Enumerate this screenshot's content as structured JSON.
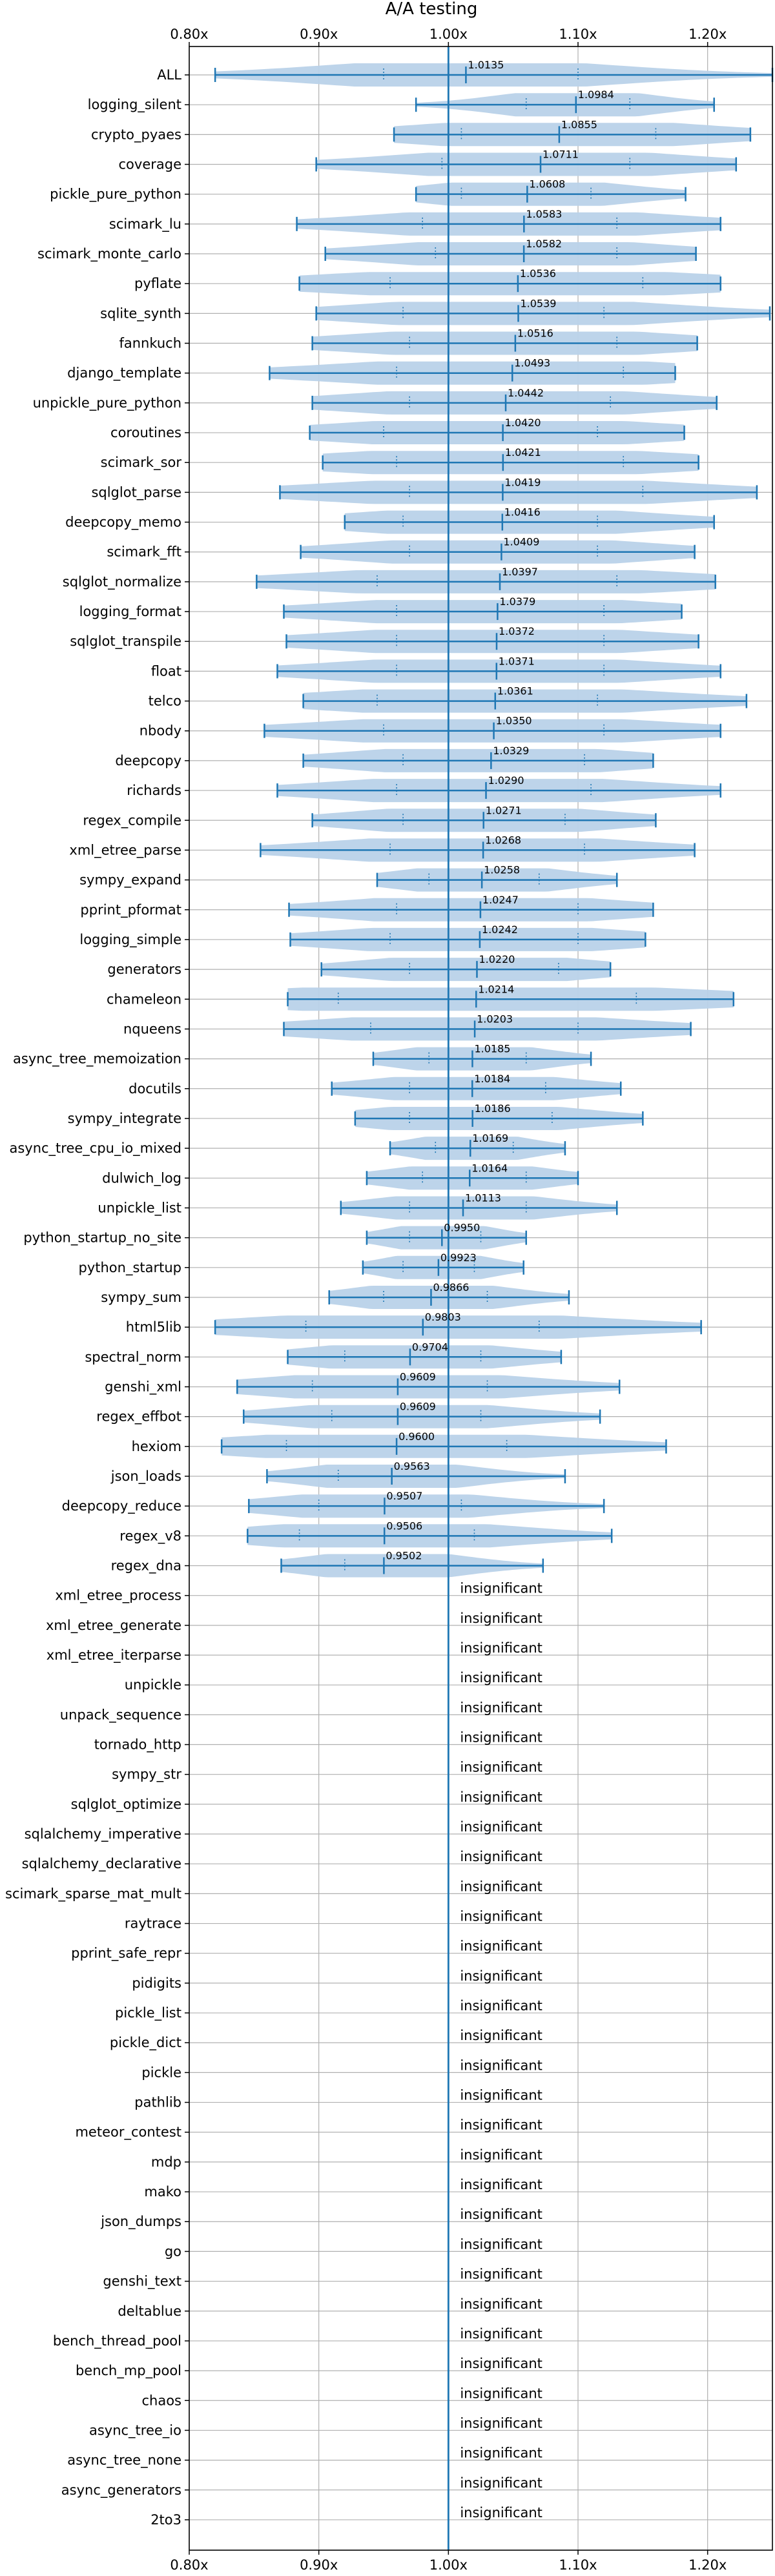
{
  "chart_data": {
    "type": "violin",
    "title": "A/A testing",
    "xlim": [
      0.8,
      1.25
    ],
    "x_ticks": [
      {
        "value": 0.8,
        "label": "0.80x"
      },
      {
        "value": 0.9,
        "label": "0.90x"
      },
      {
        "value": 1.0,
        "label": "1.00x"
      },
      {
        "value": 1.1,
        "label": "1.10x"
      },
      {
        "value": 1.2,
        "label": "1.20x"
      }
    ],
    "reference_line": 1.0,
    "grid": true,
    "insignificant_label": "insignificant",
    "colors": {
      "line": "#1f77b4",
      "fill": "#b9d2e9",
      "grid": "#b0b0b0"
    },
    "benchmarks": [
      {
        "name": "ALL",
        "mean": 1.0135,
        "label": "1.0135",
        "min": 0.82,
        "max": 1.25,
        "q1": 0.95,
        "q3": 1.1,
        "significant": true
      },
      {
        "name": "logging_silent",
        "mean": 1.0984,
        "label": "1.0984",
        "min": 0.975,
        "max": 1.205,
        "q1": 1.06,
        "q3": 1.14,
        "significant": true
      },
      {
        "name": "crypto_pyaes",
        "mean": 1.0855,
        "label": "1.0855",
        "min": 0.958,
        "max": 1.233,
        "q1": 1.01,
        "q3": 1.16,
        "significant": true
      },
      {
        "name": "coverage",
        "mean": 1.0711,
        "label": "1.0711",
        "min": 0.898,
        "max": 1.222,
        "q1": 0.995,
        "q3": 1.14,
        "significant": true
      },
      {
        "name": "pickle_pure_python",
        "mean": 1.0608,
        "label": "1.0608",
        "min": 0.975,
        "max": 1.183,
        "q1": 1.01,
        "q3": 1.11,
        "significant": true
      },
      {
        "name": "scimark_lu",
        "mean": 1.0583,
        "label": "1.0583",
        "min": 0.883,
        "max": 1.21,
        "q1": 0.98,
        "q3": 1.13,
        "significant": true
      },
      {
        "name": "scimark_monte_carlo",
        "mean": 1.0582,
        "label": "1.0582",
        "min": 0.905,
        "max": 1.191,
        "q1": 0.99,
        "q3": 1.13,
        "significant": true
      },
      {
        "name": "pyflate",
        "mean": 1.0536,
        "label": "1.0536",
        "min": 0.885,
        "max": 1.21,
        "q1": 0.955,
        "q3": 1.15,
        "significant": true
      },
      {
        "name": "sqlite_synth",
        "mean": 1.0539,
        "label": "1.0539",
        "min": 0.898,
        "max": 1.248,
        "q1": 0.965,
        "q3": 1.12,
        "significant": true
      },
      {
        "name": "fannkuch",
        "mean": 1.0516,
        "label": "1.0516",
        "min": 0.895,
        "max": 1.192,
        "q1": 0.97,
        "q3": 1.13,
        "significant": true
      },
      {
        "name": "django_template",
        "mean": 1.0493,
        "label": "1.0493",
        "min": 0.862,
        "max": 1.175,
        "q1": 0.96,
        "q3": 1.135,
        "significant": true
      },
      {
        "name": "unpickle_pure_python",
        "mean": 1.0442,
        "label": "1.0442",
        "min": 0.895,
        "max": 1.207,
        "q1": 0.97,
        "q3": 1.125,
        "significant": true
      },
      {
        "name": "coroutines",
        "mean": 1.042,
        "label": "1.0420",
        "min": 0.893,
        "max": 1.182,
        "q1": 0.95,
        "q3": 1.115,
        "significant": true
      },
      {
        "name": "scimark_sor",
        "mean": 1.0421,
        "label": "1.0421",
        "min": 0.903,
        "max": 1.193,
        "q1": 0.96,
        "q3": 1.135,
        "significant": true
      },
      {
        "name": "sqlglot_parse",
        "mean": 1.0419,
        "label": "1.0419",
        "min": 0.87,
        "max": 1.238,
        "q1": 0.97,
        "q3": 1.15,
        "significant": true
      },
      {
        "name": "deepcopy_memo",
        "mean": 1.0416,
        "label": "1.0416",
        "min": 0.92,
        "max": 1.205,
        "q1": 0.965,
        "q3": 1.115,
        "significant": true
      },
      {
        "name": "scimark_fft",
        "mean": 1.0409,
        "label": "1.0409",
        "min": 0.886,
        "max": 1.19,
        "q1": 0.97,
        "q3": 1.115,
        "significant": true
      },
      {
        "name": "sqlglot_normalize",
        "mean": 1.0397,
        "label": "1.0397",
        "min": 0.852,
        "max": 1.206,
        "q1": 0.945,
        "q3": 1.13,
        "significant": true
      },
      {
        "name": "logging_format",
        "mean": 1.0379,
        "label": "1.0379",
        "min": 0.873,
        "max": 1.18,
        "q1": 0.96,
        "q3": 1.12,
        "significant": true
      },
      {
        "name": "sqlglot_transpile",
        "mean": 1.0372,
        "label": "1.0372",
        "min": 0.875,
        "max": 1.193,
        "q1": 0.96,
        "q3": 1.12,
        "significant": true
      },
      {
        "name": "float",
        "mean": 1.0371,
        "label": "1.0371",
        "min": 0.868,
        "max": 1.21,
        "q1": 0.96,
        "q3": 1.12,
        "significant": true
      },
      {
        "name": "telco",
        "mean": 1.0361,
        "label": "1.0361",
        "min": 0.888,
        "max": 1.23,
        "q1": 0.945,
        "q3": 1.115,
        "significant": true
      },
      {
        "name": "nbody",
        "mean": 1.035,
        "label": "1.0350",
        "min": 0.858,
        "max": 1.21,
        "q1": 0.95,
        "q3": 1.12,
        "significant": true
      },
      {
        "name": "deepcopy",
        "mean": 1.0329,
        "label": "1.0329",
        "min": 0.888,
        "max": 1.158,
        "q1": 0.965,
        "q3": 1.105,
        "significant": true
      },
      {
        "name": "richards",
        "mean": 1.029,
        "label": "1.0290",
        "min": 0.868,
        "max": 1.21,
        "q1": 0.96,
        "q3": 1.11,
        "significant": true
      },
      {
        "name": "regex_compile",
        "mean": 1.0271,
        "label": "1.0271",
        "min": 0.895,
        "max": 1.16,
        "q1": 0.965,
        "q3": 1.09,
        "significant": true
      },
      {
        "name": "xml_etree_parse",
        "mean": 1.0268,
        "label": "1.0268",
        "min": 0.855,
        "max": 1.19,
        "q1": 0.955,
        "q3": 1.105,
        "significant": true
      },
      {
        "name": "sympy_expand",
        "mean": 1.0258,
        "label": "1.0258",
        "min": 0.945,
        "max": 1.13,
        "q1": 0.985,
        "q3": 1.07,
        "significant": true
      },
      {
        "name": "pprint_pformat",
        "mean": 1.0247,
        "label": "1.0247",
        "min": 0.877,
        "max": 1.158,
        "q1": 0.96,
        "q3": 1.1,
        "significant": true
      },
      {
        "name": "logging_simple",
        "mean": 1.0242,
        "label": "1.0242",
        "min": 0.878,
        "max": 1.152,
        "q1": 0.955,
        "q3": 1.1,
        "significant": true
      },
      {
        "name": "generators",
        "mean": 1.022,
        "label": "1.0220",
        "min": 0.902,
        "max": 1.125,
        "q1": 0.97,
        "q3": 1.085,
        "significant": true
      },
      {
        "name": "chameleon",
        "mean": 1.0214,
        "label": "1.0214",
        "min": 0.876,
        "max": 1.22,
        "q1": 0.915,
        "q3": 1.145,
        "significant": true
      },
      {
        "name": "nqueens",
        "mean": 1.0203,
        "label": "1.0203",
        "min": 0.873,
        "max": 1.187,
        "q1": 0.94,
        "q3": 1.1,
        "significant": true
      },
      {
        "name": "async_tree_memoization",
        "mean": 1.0185,
        "label": "1.0185",
        "min": 0.942,
        "max": 1.11,
        "q1": 0.985,
        "q3": 1.06,
        "significant": true
      },
      {
        "name": "docutils",
        "mean": 1.0184,
        "label": "1.0184",
        "min": 0.91,
        "max": 1.133,
        "q1": 0.97,
        "q3": 1.075,
        "significant": true
      },
      {
        "name": "sympy_integrate",
        "mean": 1.0186,
        "label": "1.0186",
        "min": 0.928,
        "max": 1.15,
        "q1": 0.97,
        "q3": 1.08,
        "significant": true
      },
      {
        "name": "async_tree_cpu_io_mixed",
        "mean": 1.0169,
        "label": "1.0169",
        "min": 0.955,
        "max": 1.09,
        "q1": 0.99,
        "q3": 1.05,
        "significant": true
      },
      {
        "name": "dulwich_log",
        "mean": 1.0164,
        "label": "1.0164",
        "min": 0.937,
        "max": 1.1,
        "q1": 0.98,
        "q3": 1.06,
        "significant": true
      },
      {
        "name": "unpickle_list",
        "mean": 1.0113,
        "label": "1.0113",
        "min": 0.917,
        "max": 1.13,
        "q1": 0.97,
        "q3": 1.06,
        "significant": true
      },
      {
        "name": "python_startup_no_site",
        "mean": 0.995,
        "label": "0.9950",
        "min": 0.937,
        "max": 1.06,
        "q1": 0.97,
        "q3": 1.025,
        "significant": true
      },
      {
        "name": "python_startup",
        "mean": 0.9923,
        "label": "0.9923",
        "min": 0.934,
        "max": 1.058,
        "q1": 0.965,
        "q3": 1.02,
        "significant": true
      },
      {
        "name": "sympy_sum",
        "mean": 0.9866,
        "label": "0.9866",
        "min": 0.908,
        "max": 1.093,
        "q1": 0.95,
        "q3": 1.03,
        "significant": true
      },
      {
        "name": "html5lib",
        "mean": 0.9803,
        "label": "0.9803",
        "min": 0.82,
        "max": 1.195,
        "q1": 0.89,
        "q3": 1.07,
        "significant": true
      },
      {
        "name": "spectral_norm",
        "mean": 0.9704,
        "label": "0.9704",
        "min": 0.876,
        "max": 1.087,
        "q1": 0.92,
        "q3": 1.025,
        "significant": true
      },
      {
        "name": "genshi_xml",
        "mean": 0.9609,
        "label": "0.9609",
        "min": 0.837,
        "max": 1.132,
        "q1": 0.895,
        "q3": 1.03,
        "significant": true
      },
      {
        "name": "regex_effbot",
        "mean": 0.9609,
        "label": "0.9609",
        "min": 0.842,
        "max": 1.117,
        "q1": 0.91,
        "q3": 1.025,
        "significant": true
      },
      {
        "name": "hexiom",
        "mean": 0.96,
        "label": "0.9600",
        "min": 0.825,
        "max": 1.168,
        "q1": 0.875,
        "q3": 1.045,
        "significant": true
      },
      {
        "name": "json_loads",
        "mean": 0.9563,
        "label": "0.9563",
        "min": 0.86,
        "max": 1.09,
        "q1": 0.915,
        "q3": 1.0,
        "significant": true
      },
      {
        "name": "deepcopy_reduce",
        "mean": 0.9507,
        "label": "0.9507",
        "min": 0.846,
        "max": 1.12,
        "q1": 0.9,
        "q3": 1.01,
        "significant": true
      },
      {
        "name": "regex_v8",
        "mean": 0.9506,
        "label": "0.9506",
        "min": 0.845,
        "max": 1.126,
        "q1": 0.885,
        "q3": 1.02,
        "significant": true
      },
      {
        "name": "regex_dna",
        "mean": 0.9502,
        "label": "0.9502",
        "min": 0.871,
        "max": 1.073,
        "q1": 0.92,
        "q3": 1.0,
        "significant": true
      },
      {
        "name": "xml_etree_process",
        "significant": false
      },
      {
        "name": "xml_etree_generate",
        "significant": false
      },
      {
        "name": "xml_etree_iterparse",
        "significant": false
      },
      {
        "name": "unpickle",
        "significant": false
      },
      {
        "name": "unpack_sequence",
        "significant": false
      },
      {
        "name": "tornado_http",
        "significant": false
      },
      {
        "name": "sympy_str",
        "significant": false
      },
      {
        "name": "sqlglot_optimize",
        "significant": false
      },
      {
        "name": "sqlalchemy_imperative",
        "significant": false
      },
      {
        "name": "sqlalchemy_declarative",
        "significant": false
      },
      {
        "name": "scimark_sparse_mat_mult",
        "significant": false
      },
      {
        "name": "raytrace",
        "significant": false
      },
      {
        "name": "pprint_safe_repr",
        "significant": false
      },
      {
        "name": "pidigits",
        "significant": false
      },
      {
        "name": "pickle_list",
        "significant": false
      },
      {
        "name": "pickle_dict",
        "significant": false
      },
      {
        "name": "pickle",
        "significant": false
      },
      {
        "name": "pathlib",
        "significant": false
      },
      {
        "name": "meteor_contest",
        "significant": false
      },
      {
        "name": "mdp",
        "significant": false
      },
      {
        "name": "mako",
        "significant": false
      },
      {
        "name": "json_dumps",
        "significant": false
      },
      {
        "name": "go",
        "significant": false
      },
      {
        "name": "genshi_text",
        "significant": false
      },
      {
        "name": "deltablue",
        "significant": false
      },
      {
        "name": "bench_thread_pool",
        "significant": false
      },
      {
        "name": "bench_mp_pool",
        "significant": false
      },
      {
        "name": "chaos",
        "significant": false
      },
      {
        "name": "async_tree_io",
        "significant": false
      },
      {
        "name": "async_tree_none",
        "significant": false
      },
      {
        "name": "async_generators",
        "significant": false
      },
      {
        "name": "2to3",
        "significant": false
      }
    ]
  }
}
